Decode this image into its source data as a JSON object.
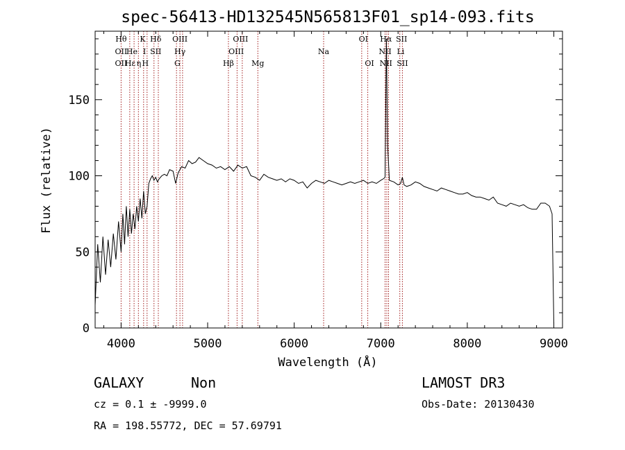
{
  "chart_data": {
    "type": "line",
    "title": "spec-56413-HD132545N565813F01_sp14-093.fits",
    "xlabel": "Wavelength (Å)",
    "ylabel": "Flux (relative)",
    "xlim": [
      3700,
      9100
    ],
    "ylim": [
      0,
      195
    ],
    "xticks": [
      4000,
      5000,
      6000,
      7000,
      8000,
      9000
    ],
    "yticks": [
      0,
      50,
      100,
      150
    ],
    "grid": false,
    "series": [
      {
        "x": [
          3700,
          3730,
          3760,
          3790,
          3820,
          3850,
          3880,
          3910,
          3940,
          3970,
          4000,
          4020,
          4040,
          4060,
          4080,
          4100,
          4120,
          4140,
          4160,
          4180,
          4200,
          4220,
          4240,
          4260,
          4280,
          4300,
          4320,
          4340,
          4360,
          4380,
          4400,
          4420,
          4440,
          4470,
          4500,
          4530,
          4560,
          4600,
          4630,
          4660,
          4700,
          4740,
          4780,
          4820,
          4860,
          4900,
          4950,
          5000,
          5050,
          5100,
          5150,
          5200,
          5250,
          5300,
          5350,
          5400,
          5450,
          5500,
          5550,
          5600,
          5650,
          5700,
          5750,
          5800,
          5850,
          5900,
          5950,
          6000,
          6050,
          6100,
          6150,
          6200,
          6250,
          6300,
          6350,
          6400,
          6450,
          6500,
          6550,
          6600,
          6650,
          6700,
          6750,
          6800,
          6850,
          6900,
          6950,
          7000,
          7030,
          7050,
          7065,
          7080,
          7100,
          7150,
          7200,
          7230,
          7250,
          7270,
          7300,
          7350,
          7400,
          7450,
          7500,
          7550,
          7600,
          7650,
          7700,
          7750,
          7800,
          7850,
          7900,
          7950,
          8000,
          8050,
          8100,
          8150,
          8200,
          8250,
          8300,
          8350,
          8400,
          8450,
          8500,
          8550,
          8600,
          8650,
          8700,
          8750,
          8800,
          8850,
          8900,
          8950,
          8980,
          9000
        ],
        "y": [
          15,
          55,
          30,
          60,
          35,
          58,
          40,
          62,
          45,
          70,
          50,
          75,
          55,
          80,
          60,
          78,
          62,
          75,
          65,
          80,
          70,
          85,
          72,
          90,
          75,
          80,
          95,
          98,
          100,
          97,
          99,
          96,
          98,
          100,
          101,
          100,
          104,
          103,
          95,
          102,
          106,
          105,
          110,
          108,
          109,
          112,
          110,
          108,
          107,
          105,
          106,
          104,
          106,
          103,
          107,
          105,
          106,
          100,
          99,
          97,
          101,
          99,
          98,
          97,
          98,
          96,
          98,
          97,
          95,
          96,
          92,
          95,
          97,
          96,
          95,
          97,
          96,
          95,
          94,
          95,
          96,
          95,
          96,
          97,
          95,
          96,
          95,
          97,
          98,
          99,
          190,
          120,
          97,
          96,
          94,
          95,
          99,
          94,
          93,
          94,
          96,
          95,
          93,
          92,
          91,
          90,
          92,
          91,
          90,
          89,
          88,
          88,
          89,
          87,
          86,
          86,
          85,
          84,
          86,
          82,
          81,
          80,
          82,
          81,
          80,
          81,
          79,
          78,
          78,
          82,
          82,
          80,
          75,
          3
        ]
      }
    ],
    "spectral_lines": [
      {
        "label": "Hθ",
        "row": 1,
        "x": 4000
      },
      {
        "label": "K",
        "row": 1,
        "x": 4250
      },
      {
        "label": "Hδ",
        "row": 1,
        "x": 4400
      },
      {
        "label": "OIII",
        "row": 1,
        "x": 4680
      },
      {
        "label": "OIII",
        "row": 1,
        "x": 5380
      },
      {
        "label": "OI",
        "row": 1,
        "x": 6800
      },
      {
        "label": "Hα",
        "row": 1,
        "x": 7060
      },
      {
        "label": "SII",
        "row": 1,
        "x": 7240
      },
      {
        "label": "OII",
        "row": 2,
        "x": 4000
      },
      {
        "label": "He",
        "row": 2,
        "x": 4125
      },
      {
        "label": "I",
        "row": 2,
        "x": 4270
      },
      {
        "label": "SII",
        "row": 2,
        "x": 4400
      },
      {
        "label": "Hγ",
        "row": 2,
        "x": 4680
      },
      {
        "label": "OIII",
        "row": 2,
        "x": 5330
      },
      {
        "label": "Na",
        "row": 2,
        "x": 6340
      },
      {
        "label": "NII",
        "row": 2,
        "x": 7050
      },
      {
        "label": "Li",
        "row": 2,
        "x": 7230
      },
      {
        "label": "OII",
        "row": 3,
        "x": 4000
      },
      {
        "label": "Hε",
        "row": 3,
        "x": 4105
      },
      {
        "label": "η",
        "row": 3,
        "x": 4205
      },
      {
        "label": "H",
        "row": 3,
        "x": 4280
      },
      {
        "label": "G",
        "row": 3,
        "x": 4650
      },
      {
        "label": "Hβ",
        "row": 3,
        "x": 5240
      },
      {
        "label": "Mg",
        "row": 3,
        "x": 5580
      },
      {
        "label": "OI",
        "row": 3,
        "x": 6870
      },
      {
        "label": "NII",
        "row": 3,
        "x": 7060
      },
      {
        "label": "SII",
        "row": 3,
        "x": 7250
      }
    ],
    "line_markers": [
      4000,
      4100,
      4150,
      4200,
      4260,
      4300,
      4380,
      4430,
      4640,
      4680,
      4710,
      5240,
      5340,
      5400,
      5580,
      6340,
      6780,
      6850,
      7050,
      7070,
      7090,
      7220,
      7250
    ]
  },
  "info": {
    "class_label": "GALAXY",
    "subclass_label": "Non",
    "survey": "LAMOST DR3",
    "cz": "cz = 0.1 ± -9999.0",
    "obs_date": "Obs-Date: 20130430",
    "coords": "RA = 198.55772, DEC =  57.69791"
  }
}
